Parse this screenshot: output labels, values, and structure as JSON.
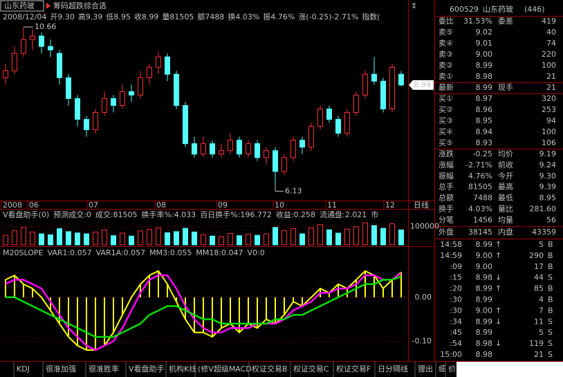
{
  "title_bar": {
    "stock": "山东药玻",
    "formula": "筹码超跌综合选"
  },
  "info_line": [
    "2008/12/04",
    "开9.30",
    "高9.39",
    "低8.95",
    "收8.99",
    "量81505",
    "额7488",
    "换4.03%",
    "振4.76%",
    "涨(-0.25)-2.71%",
    "指数("
  ],
  "chart_data": [
    {
      "type": "candlestick",
      "ohlc": [
        [
          9.2,
          9.6,
          9.0,
          9.4
        ],
        [
          9.4,
          10.1,
          9.3,
          9.9
        ],
        [
          9.9,
          10.66,
          9.8,
          10.3
        ],
        [
          10.3,
          10.6,
          10.0,
          10.4
        ],
        [
          10.4,
          10.5,
          9.9,
          10.1
        ],
        [
          10.1,
          10.3,
          9.8,
          10.0
        ],
        [
          9.9,
          10.0,
          9.0,
          9.2
        ],
        [
          9.2,
          9.3,
          8.4,
          8.6
        ],
        [
          8.6,
          8.7,
          7.8,
          8.0
        ],
        [
          8.0,
          8.1,
          7.5,
          7.7
        ],
        [
          7.7,
          8.3,
          7.6,
          8.2
        ],
        [
          8.2,
          8.8,
          8.1,
          8.6
        ],
        [
          8.6,
          8.7,
          8.2,
          8.4
        ],
        [
          8.4,
          9.0,
          8.3,
          8.8
        ],
        [
          8.8,
          9.0,
          8.5,
          8.7
        ],
        [
          8.7,
          9.4,
          8.6,
          9.2
        ],
        [
          9.2,
          9.6,
          9.0,
          9.5
        ],
        [
          9.5,
          9.95,
          9.3,
          9.8
        ],
        [
          9.8,
          9.9,
          9.1,
          9.3
        ],
        [
          9.3,
          9.4,
          8.3,
          8.4
        ],
        [
          8.4,
          8.5,
          7.2,
          7.3
        ],
        [
          7.3,
          7.5,
          6.9,
          7.0
        ],
        [
          7.0,
          7.5,
          6.9,
          7.3
        ],
        [
          7.3,
          7.4,
          6.9,
          7.0
        ],
        [
          7.0,
          7.3,
          6.9,
          7.1
        ],
        [
          7.1,
          7.6,
          7.0,
          7.4
        ],
        [
          7.4,
          7.5,
          6.9,
          7.0
        ],
        [
          7.0,
          7.4,
          6.9,
          7.3
        ],
        [
          7.3,
          7.4,
          6.8,
          6.9
        ],
        [
          6.9,
          7.2,
          6.7,
          7.1
        ],
        [
          7.1,
          7.2,
          6.13,
          6.5
        ],
        [
          6.5,
          7.0,
          6.4,
          6.9
        ],
        [
          6.9,
          7.5,
          6.8,
          7.4
        ],
        [
          7.4,
          7.5,
          7.0,
          7.2
        ],
        [
          7.2,
          7.9,
          7.1,
          7.8
        ],
        [
          7.8,
          8.4,
          7.7,
          8.3
        ],
        [
          8.3,
          8.4,
          7.9,
          8.0
        ],
        [
          8.0,
          8.1,
          7.5,
          7.6
        ],
        [
          7.6,
          8.3,
          7.5,
          8.2
        ],
        [
          8.2,
          8.8,
          8.1,
          8.7
        ],
        [
          8.7,
          9.4,
          8.6,
          9.3
        ],
        [
          9.3,
          9.8,
          9.0,
          9.1
        ],
        [
          9.1,
          9.2,
          8.2,
          8.3
        ],
        [
          8.3,
          9.6,
          8.2,
          9.5
        ],
        [
          9.3,
          9.39,
          8.95,
          8.99
        ]
      ],
      "up_color": "#ff3232",
      "down_color": "#54fcfc",
      "ylim": [
        5.7,
        10.76
      ],
      "x_labels": [
        "2008",
        "06",
        "07",
        "08",
        "09",
        "10",
        "11",
        "12"
      ],
      "period": "日线"
    },
    {
      "type": "bar",
      "header": [
        "V看盘助手(0)",
        "预测成交:0",
        "成交:81505",
        "换手率%:4.033",
        "百日换手%:196.772",
        "收益:0.258",
        "流通盘:2.021",
        "市"
      ],
      "values": [
        52000,
        78000,
        95000,
        70000,
        60000,
        55000,
        88000,
        72000,
        65000,
        60000,
        70000,
        82000,
        50000,
        64000,
        48000,
        76000,
        85000,
        92000,
        66000,
        72000,
        90000,
        70000,
        55000,
        48000,
        45000,
        62000,
        50000,
        58000,
        52000,
        60000,
        95000,
        78000,
        88000,
        60000,
        92000,
        110000,
        82000,
        64000,
        86000,
        98000,
        120000,
        105000,
        90000,
        115000,
        81505
      ],
      "ylim": [
        0,
        188000
      ],
      "yticks": [
        100000
      ]
    },
    {
      "type": "line",
      "header": [
        "M20SLOPE",
        "VAR1:0.057",
        "VAR1A:0.057",
        "MM3:0.055",
        "MM18:0.047",
        "V0:0"
      ],
      "series": [
        {
          "name": "VAR1",
          "color": "#ffff00",
          "values": [
            0.04,
            0.05,
            0.03,
            0.02,
            0.0,
            -0.03,
            -0.06,
            -0.09,
            -0.11,
            -0.12,
            -0.12,
            -0.11,
            -0.08,
            -0.04,
            0.0,
            0.03,
            0.05,
            0.06,
            0.03,
            -0.01,
            -0.05,
            -0.08,
            -0.08,
            -0.09,
            -0.07,
            -0.06,
            -0.08,
            -0.06,
            -0.07,
            -0.05,
            -0.06,
            -0.04,
            -0.01,
            -0.02,
            0.0,
            0.02,
            0.01,
            0.03,
            0.02,
            0.04,
            0.06,
            0.05,
            0.02,
            0.04,
            0.057
          ]
        },
        {
          "name": "MM3",
          "color": "#ff00ff",
          "values": [
            0.03,
            0.04,
            0.04,
            0.03,
            0.02,
            -0.01,
            -0.04,
            -0.07,
            -0.09,
            -0.11,
            -0.12,
            -0.11,
            -0.1,
            -0.07,
            -0.03,
            0.01,
            0.04,
            0.05,
            0.05,
            0.02,
            -0.02,
            -0.05,
            -0.07,
            -0.08,
            -0.08,
            -0.07,
            -0.07,
            -0.07,
            -0.06,
            -0.06,
            -0.06,
            -0.05,
            -0.03,
            -0.02,
            -0.01,
            0.01,
            0.01,
            0.02,
            0.02,
            0.03,
            0.05,
            0.05,
            0.04,
            0.04,
            0.055
          ]
        },
        {
          "name": "MM18",
          "color": "#00e000",
          "values": [
            0.0,
            0.0,
            -0.01,
            -0.02,
            -0.03,
            -0.04,
            -0.05,
            -0.06,
            -0.07,
            -0.08,
            -0.09,
            -0.09,
            -0.09,
            -0.08,
            -0.07,
            -0.06,
            -0.04,
            -0.03,
            -0.02,
            -0.02,
            -0.03,
            -0.04,
            -0.05,
            -0.05,
            -0.06,
            -0.06,
            -0.06,
            -0.06,
            -0.06,
            -0.06,
            -0.05,
            -0.05,
            -0.04,
            -0.04,
            -0.03,
            -0.02,
            -0.01,
            0.0,
            0.01,
            0.02,
            0.03,
            0.03,
            0.04,
            0.04,
            0.047
          ]
        }
      ],
      "ylim": [
        -0.142,
        0.113
      ],
      "yticks": [
        {
          "value": 0,
          "label": "0.00"
        },
        {
          "value": -0.1,
          "label": "-0.10"
        }
      ]
    }
  ],
  "quote": {
    "code": "600529",
    "name": "山东药玻",
    "count": "(446)",
    "ratio": {
      "l1": "委比",
      "v1": "31.53%",
      "l2": "委差",
      "v2": "419"
    },
    "asks": [
      {
        "label": "卖⑤",
        "price": "9.02",
        "volume": "40"
      },
      {
        "label": "卖④",
        "price": "9.01",
        "volume": "74"
      },
      {
        "label": "卖③",
        "price": "9.00",
        "volume": "220"
      },
      {
        "label": "卖②",
        "price": "8.99",
        "volume": "100"
      },
      {
        "label": "卖①",
        "price": "8.98",
        "volume": "21"
      }
    ],
    "last": {
      "l1": "最新",
      "v1": "8.99",
      "l2": "现手",
      "v2": "21"
    },
    "bids": [
      {
        "label": "买①",
        "price": "8.97",
        "volume": "320"
      },
      {
        "label": "买②",
        "price": "8.96",
        "volume": "253"
      },
      {
        "label": "买③",
        "price": "8.95",
        "volume": "94"
      },
      {
        "label": "买④",
        "price": "8.94",
        "volume": "100"
      },
      {
        "label": "买⑤",
        "price": "8.93",
        "volume": "106"
      }
    ],
    "stats": [
      {
        "l1": "涨跌",
        "v1": "-0.25",
        "l2": "均价",
        "v2": "9.19"
      },
      {
        "l1": "涨幅",
        "v1": "-2.71%",
        "l2": "前收",
        "v2": "9.24"
      },
      {
        "l1": "振幅",
        "v1": "4.76%",
        "l2": "今开",
        "v2": "9.30"
      },
      {
        "l1": "总手",
        "v1": "81505",
        "l2": "最高",
        "v2": "9.39"
      },
      {
        "l1": "总额",
        "v1": "7488",
        "l2": "最低",
        "v2": "8.95"
      },
      {
        "l1": "换手",
        "v1": "4.03%",
        "l2": "量比",
        "v2": "281.60"
      },
      {
        "l1": "分笔",
        "v1": "1456",
        "l2": "均量",
        "v2": "56"
      },
      {
        "l1": "外盘",
        "v1": "38145",
        "l2": "内盘",
        "v2": "43359"
      }
    ],
    "ticks": [
      {
        "time": "14:58",
        "price": "8.99",
        "arrow": "↑",
        "volume": "5",
        "side": "B"
      },
      {
        "time": "14:59",
        "price": "9.00",
        "arrow": "↑",
        "volume": "290",
        "side": "B"
      },
      {
        "time": ":09",
        "price": "9.00",
        "volume": "17",
        "side": "B"
      },
      {
        "time": ":15",
        "price": "8.98",
        "arrow": "↓",
        "volume": "44",
        "side": "S"
      },
      {
        "time": ":20",
        "price": "8.99",
        "arrow": "↑",
        "volume": "85",
        "side": "B"
      },
      {
        "time": ":30",
        "price": "8.99",
        "volume": "4",
        "side": "B"
      },
      {
        "time": ":30",
        "price": "9.00",
        "arrow": "↑",
        "volume": "7",
        "side": "B"
      },
      {
        "time": ":34",
        "price": "8.99",
        "arrow": "↓",
        "volume": "11",
        "side": "S"
      },
      {
        "time": ":45",
        "price": "8.99",
        "volume": "5",
        "side": "S"
      },
      {
        "time": ":54",
        "price": "8.98",
        "arrow": "↓",
        "volume": "119",
        "side": "S"
      },
      {
        "time": "15:00",
        "price": "8.98",
        "volume": "21",
        "side": "S"
      }
    ]
  },
  "tabs": [
    "KDJ",
    "很准加强",
    "很准胜率",
    "V看盘助手",
    "机构K线",
    "(修V超级MACD",
    "权证交易B",
    "权证交易C",
    "权证交易F",
    "日分隔线",
    "狸出",
    "细",
    "价"
  ]
}
